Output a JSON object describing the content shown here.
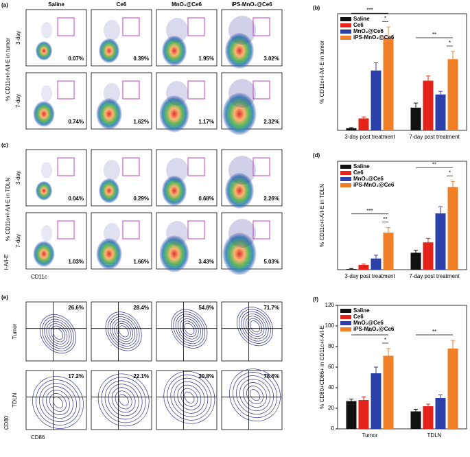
{
  "chart_data": [
    {
      "type": "flow",
      "panel": "(a)",
      "gate": "box",
      "columns": [
        "Saline",
        "Ce6",
        "MnO₂@Ce6",
        "iPS-MnO₂@Ce6"
      ],
      "rows": [
        "3-day",
        "7-day"
      ],
      "ylabel": "% CD11c+I-A/I-E in tumor",
      "values": [
        [
          0.07,
          0.39,
          1.95,
          3.02
        ],
        [
          0.74,
          1.62,
          1.17,
          2.32
        ]
      ],
      "value_labels": [
        [
          "0.07%",
          "0.39%",
          "1.95%",
          "3.02%"
        ],
        [
          "0.74%",
          "1.62%",
          "1.17%",
          "2.32%"
        ]
      ]
    },
    {
      "type": "flow",
      "panel": "(c)",
      "gate": "box",
      "rows": [
        "3-day",
        "7-day"
      ],
      "ylabel": "% CD11c+I-A/I-E in TDLN",
      "xaxis_label": "CD11c",
      "yaxis_label": "I-A/I-E",
      "values": [
        [
          0.04,
          0.29,
          0.68,
          2.26
        ],
        [
          1.03,
          1.66,
          3.43,
          5.03
        ]
      ],
      "value_labels": [
        [
          "0.04%",
          "0.29%",
          "0.68%",
          "2.26%"
        ],
        [
          "1.03%",
          "1.66%",
          "3.43%",
          "5.03%"
        ]
      ]
    },
    {
      "type": "flow",
      "panel": "(e)",
      "gate": "quadrant",
      "rows": [
        "Tumor",
        "TDLN"
      ],
      "xaxis_label": "CD86",
      "yaxis_label": "CD80",
      "values": [
        [
          26.6,
          28.4,
          54.8,
          71.7
        ],
        [
          17.2,
          22.1,
          30.8,
          78.6
        ]
      ],
      "value_labels": [
        [
          "26.6%",
          "28.4%",
          "54.8%",
          "71.7%"
        ],
        [
          "17.2%",
          "22.1%",
          "30.8%",
          "78.6%"
        ]
      ]
    },
    {
      "type": "bar",
      "panel": "(b)",
      "ylabel": "% CD11c+I-A/I-E in tumor",
      "categories": [
        "3-day post treatment",
        "7-day post treatment"
      ],
      "series": [
        {
          "name": "Saline",
          "color": "#111111",
          "values": [
            0.07,
            0.74
          ],
          "errors": [
            0.02,
            0.15
          ]
        },
        {
          "name": "Ce6",
          "color": "#e3241b",
          "values": [
            0.39,
            1.62
          ],
          "errors": [
            0.05,
            0.15
          ]
        },
        {
          "name": "MnO₂@Ce6",
          "color": "#2b3fa8",
          "values": [
            1.95,
            1.17
          ],
          "errors": [
            0.25,
            0.1
          ]
        },
        {
          "name": "iPS-MnO₂@Ce6",
          "color": "#f07f28",
          "values": [
            3.02,
            2.32
          ],
          "errors": [
            0.35,
            0.25
          ]
        }
      ],
      "ylim": [
        0,
        3.8
      ],
      "annotations": [
        "***",
        "*",
        "**",
        "*"
      ]
    },
    {
      "type": "bar",
      "panel": "(d)",
      "ylabel": "% CD11c+I-A/I-E in TDLN",
      "categories": [
        "3-day post treatment",
        "7-day post treatment"
      ],
      "series": [
        {
          "name": "Saline",
          "color": "#111111",
          "values": [
            0.04,
            1.03
          ],
          "errors": [
            0.03,
            0.15
          ]
        },
        {
          "name": "Ce6",
          "color": "#e3241b",
          "values": [
            0.29,
            1.66
          ],
          "errors": [
            0.05,
            0.25
          ]
        },
        {
          "name": "MnO₂@Ce6",
          "color": "#2b3fa8",
          "values": [
            0.68,
            3.43
          ],
          "errors": [
            0.2,
            0.4
          ]
        },
        {
          "name": "iPS-MnO₂@Ce6",
          "color": "#f07f28",
          "values": [
            2.26,
            5.03
          ],
          "errors": [
            0.3,
            0.35
          ]
        }
      ],
      "ylim": [
        0,
        6.6
      ],
      "annotations": [
        "***",
        "**",
        "**",
        "*"
      ]
    },
    {
      "type": "bar",
      "panel": "(f)",
      "ylabel": "% CD80+CD86+ in CD11c+I-A/I-E",
      "categories": [
        "Tumor",
        "TDLN"
      ],
      "series": [
        {
          "name": "Saline",
          "color": "#111111",
          "values": [
            27,
            17
          ],
          "errors": [
            2,
            2
          ]
        },
        {
          "name": "Ce6",
          "color": "#e3241b",
          "values": [
            28,
            22
          ],
          "errors": [
            3,
            2
          ]
        },
        {
          "name": "MnO₂@Ce6",
          "color": "#2b3fa8",
          "values": [
            54,
            30
          ],
          "errors": [
            6,
            3
          ]
        },
        {
          "name": "iPS-MnO₂@Ce6",
          "color": "#f07f28",
          "values": [
            71,
            78
          ],
          "errors": [
            7,
            8
          ]
        }
      ],
      "ylim": [
        0,
        120
      ],
      "yticks": [
        0,
        20,
        40,
        60,
        80,
        100,
        120
      ],
      "annotations": [
        "**",
        "*",
        "**"
      ]
    }
  ]
}
